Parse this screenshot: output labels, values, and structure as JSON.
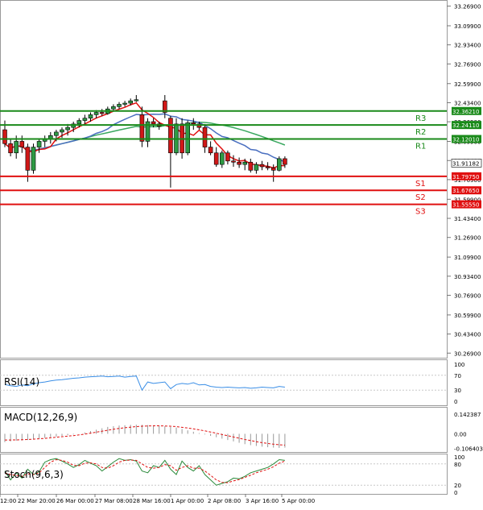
{
  "chart_data": [
    {
      "type": "candlestick",
      "panel": "price",
      "y_ticks": [
        "33.26900",
        "33.09900",
        "32.93400",
        "32.76900",
        "32.59900",
        "32.43400",
        "32.26900",
        "32.09900",
        "31.93400",
        "31.76900",
        "31.59900",
        "31.43400",
        "31.26900",
        "31.09900",
        "30.93400",
        "30.76900",
        "30.59900",
        "30.43400",
        "30.26900"
      ],
      "x_ticks": [
        "12:00",
        "22 Mar 20:00",
        "26 Mar 00:00",
        "27 Mar 08:00",
        "28 Mar 16:00",
        "1 Apr 00:00",
        "2 Apr 08:00",
        "3 Apr 16:00",
        "5 Apr 00:00"
      ],
      "ylim": [
        30.25,
        33.28
      ],
      "current_price": "31.91182",
      "levels": [
        {
          "name": "R3",
          "value": 32.3621,
          "label": "32.36210",
          "color": "#1a8a1a"
        },
        {
          "name": "R2",
          "value": 32.2411,
          "label": "32.24110",
          "color": "#1a8a1a"
        },
        {
          "name": "R1",
          "value": 32.1201,
          "label": "32.12010",
          "color": "#1a8a1a"
        },
        {
          "name": "S1",
          "value": 31.7975,
          "label": "31.79750",
          "color": "#e01010"
        },
        {
          "name": "S2",
          "value": 31.6765,
          "label": "31.67650",
          "color": "#e01010"
        },
        {
          "name": "S3",
          "value": 31.5555,
          "label": "31.55550",
          "color": "#e01010"
        }
      ],
      "candles": [
        [
          32.2,
          32.28,
          32.05,
          32.08
        ],
        [
          32.08,
          32.12,
          31.97,
          32.0
        ],
        [
          32.0,
          32.15,
          31.95,
          32.1
        ],
        [
          32.1,
          32.15,
          32.0,
          32.05
        ],
        [
          32.05,
          32.08,
          31.75,
          31.85
        ],
        [
          31.85,
          32.08,
          31.82,
          32.05
        ],
        [
          32.05,
          32.12,
          32.0,
          32.1
        ],
        [
          32.1,
          32.15,
          32.05,
          32.12
        ],
        [
          32.12,
          32.18,
          32.08,
          32.15
        ],
        [
          32.15,
          32.2,
          32.1,
          32.18
        ],
        [
          32.18,
          32.22,
          32.13,
          32.2
        ],
        [
          32.2,
          32.25,
          32.15,
          32.22
        ],
        [
          32.22,
          32.27,
          32.18,
          32.25
        ],
        [
          32.25,
          32.3,
          32.22,
          32.28
        ],
        [
          32.28,
          32.33,
          32.25,
          32.3
        ],
        [
          32.3,
          32.35,
          32.27,
          32.33
        ],
        [
          32.33,
          32.37,
          32.3,
          32.35
        ],
        [
          32.35,
          32.38,
          32.32,
          32.34
        ],
        [
          32.34,
          32.4,
          32.33,
          32.38
        ],
        [
          32.38,
          32.42,
          32.36,
          32.4
        ],
        [
          32.4,
          32.44,
          32.38,
          32.42
        ],
        [
          32.42,
          32.45,
          32.4,
          32.43
        ],
        [
          32.43,
          32.47,
          32.41,
          32.45
        ],
        [
          32.45,
          32.5,
          32.44,
          32.46
        ],
        [
          32.33,
          32.4,
          32.05,
          32.1
        ],
        [
          32.1,
          32.3,
          32.05,
          32.27
        ],
        [
          32.27,
          32.3,
          32.22,
          32.25
        ],
        [
          32.25,
          32.27,
          32.2,
          32.23
        ],
        [
          32.45,
          32.5,
          32.3,
          32.35
        ],
        [
          32.3,
          32.32,
          31.7,
          32.0
        ],
        [
          32.0,
          32.3,
          31.98,
          32.25
        ],
        [
          32.25,
          32.3,
          31.95,
          32.0
        ],
        [
          32.0,
          32.28,
          31.98,
          32.26
        ],
        [
          32.26,
          32.3,
          32.2,
          32.25
        ],
        [
          32.25,
          32.27,
          32.2,
          32.22
        ],
        [
          32.22,
          32.25,
          32.0,
          32.05
        ],
        [
          32.05,
          32.1,
          31.98,
          32.0
        ],
        [
          32.0,
          32.05,
          31.88,
          31.9
        ],
        [
          31.9,
          32.02,
          31.87,
          32.0
        ],
        [
          32.0,
          32.02,
          31.9,
          31.93
        ],
        [
          31.93,
          31.98,
          31.88,
          31.92
        ],
        [
          31.92,
          31.96,
          31.87,
          31.9
        ],
        [
          31.9,
          31.95,
          31.85,
          31.92
        ],
        [
          31.92,
          31.95,
          31.83,
          31.85
        ],
        [
          31.85,
          31.92,
          31.82,
          31.9
        ],
        [
          31.9,
          31.93,
          31.85,
          31.88
        ],
        [
          31.88,
          31.92,
          31.85,
          31.87
        ],
        [
          31.87,
          31.9,
          31.75,
          31.85
        ],
        [
          31.85,
          31.97,
          31.84,
          31.95
        ],
        [
          31.95,
          31.97,
          31.87,
          31.9
        ]
      ]
    },
    {
      "type": "line",
      "panel": "rsi",
      "label": "RSI(14)",
      "y_ticks": [
        "100",
        "70",
        "30",
        "0"
      ],
      "ylim": [
        0,
        100
      ],
      "values": [
        45,
        42,
        40,
        44,
        42,
        47,
        50,
        52,
        55,
        57,
        58,
        60,
        62,
        63,
        65,
        66,
        67,
        68,
        66,
        67,
        68,
        65,
        67,
        68,
        30,
        52,
        48,
        50,
        52,
        34,
        45,
        48,
        46,
        50,
        44,
        45,
        40,
        38,
        37,
        38,
        37,
        36,
        37,
        35,
        36,
        38,
        37,
        36,
        40,
        38
      ]
    },
    {
      "type": "bar",
      "panel": "macd",
      "label": "MACD(12,26,9)",
      "y_ticks": [
        "0.142387",
        "0.00",
        "-0.106403"
      ],
      "ylim": [
        -0.12,
        0.16
      ],
      "histogram": [
        -0.06,
        -0.055,
        -0.05,
        -0.048,
        -0.045,
        -0.04,
        -0.035,
        -0.03,
        -0.025,
        -0.02,
        -0.015,
        -0.01,
        -0.005,
        0.0,
        0.01,
        0.02,
        0.03,
        0.04,
        0.05,
        0.055,
        0.06,
        0.062,
        0.065,
        0.066,
        0.065,
        0.063,
        0.06,
        0.058,
        0.055,
        0.05,
        0.045,
        0.035,
        0.025,
        0.015,
        0.005,
        -0.005,
        -0.015,
        -0.025,
        -0.035,
        -0.045,
        -0.055,
        -0.065,
        -0.075,
        -0.082,
        -0.088,
        -0.093,
        -0.097,
        -0.1,
        -0.102,
        -0.1
      ],
      "signal": [
        -0.045,
        -0.045,
        -0.044,
        -0.043,
        -0.041,
        -0.039,
        -0.036,
        -0.033,
        -0.029,
        -0.025,
        -0.021,
        -0.017,
        -0.013,
        -0.008,
        -0.002,
        0.005,
        0.012,
        0.019,
        0.026,
        0.033,
        0.039,
        0.044,
        0.048,
        0.052,
        0.055,
        0.057,
        0.058,
        0.058,
        0.057,
        0.055,
        0.052,
        0.047,
        0.042,
        0.036,
        0.029,
        0.021,
        0.013,
        0.004,
        -0.005,
        -0.014,
        -0.023,
        -0.032,
        -0.041,
        -0.049,
        -0.057,
        -0.064,
        -0.07,
        -0.075,
        -0.079,
        -0.082
      ]
    },
    {
      "type": "line",
      "panel": "stoch",
      "label": "Stoch(9,6,3)",
      "y_ticks": [
        "100",
        "80",
        "20",
        "0"
      ],
      "ylim": [
        0,
        100
      ],
      "main": [
        60,
        35,
        55,
        40,
        65,
        50,
        58,
        85,
        92,
        95,
        88,
        80,
        70,
        78,
        90,
        82,
        75,
        60,
        72,
        85,
        95,
        90,
        92,
        88,
        60,
        55,
        75,
        70,
        90,
        65,
        50,
        88,
        70,
        60,
        75,
        50,
        35,
        20,
        25,
        30,
        40,
        38,
        45,
        55,
        60,
        65,
        70,
        80,
        92,
        90
      ],
      "signal": [
        55,
        50,
        48,
        45,
        52,
        50,
        55,
        70,
        85,
        92,
        90,
        85,
        76,
        75,
        82,
        83,
        80,
        70,
        68,
        75,
        85,
        90,
        91,
        90,
        80,
        70,
        68,
        70,
        78,
        75,
        62,
        70,
        75,
        68,
        68,
        60,
        48,
        35,
        28,
        27,
        32,
        36,
        42,
        48,
        55,
        60,
        65,
        72,
        82,
        88
      ]
    }
  ]
}
